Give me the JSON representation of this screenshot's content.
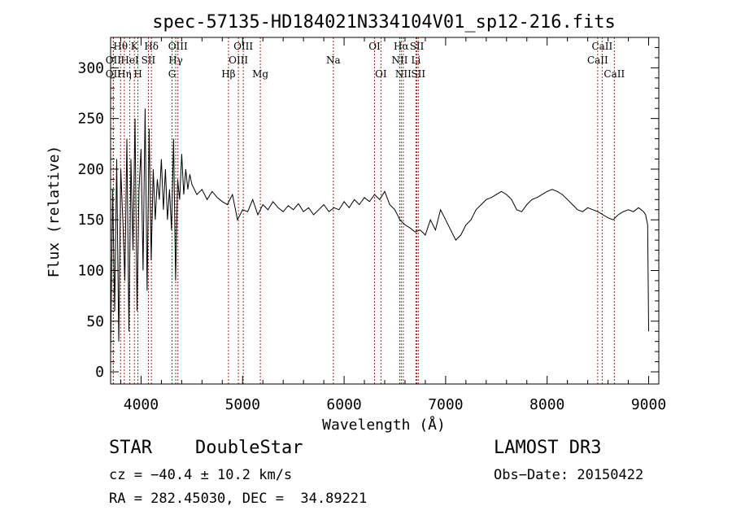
{
  "chart_data": {
    "type": "line",
    "title": "spec-57135-HD184021N334104V01_sp12-216.fits",
    "xlabel": "Wavelength (Å)",
    "ylabel": "Flux (relative)",
    "xlim": [
      3700,
      9100
    ],
    "ylim": [
      -12,
      330
    ],
    "xticks": [
      4000,
      5000,
      6000,
      7000,
      8000,
      9000
    ],
    "yticks": [
      0,
      50,
      100,
      150,
      200,
      250,
      300
    ],
    "series": [
      {
        "name": "flux",
        "x": [
          3700,
          3720,
          3740,
          3760,
          3780,
          3800,
          3820,
          3840,
          3860,
          3880,
          3900,
          3920,
          3940,
          3960,
          3980,
          4000,
          4020,
          4040,
          4060,
          4080,
          4100,
          4120,
          4140,
          4160,
          4180,
          4200,
          4220,
          4240,
          4260,
          4280,
          4300,
          4320,
          4340,
          4360,
          4380,
          4400,
          4420,
          4440,
          4460,
          4480,
          4500,
          4550,
          4600,
          4650,
          4700,
          4750,
          4800,
          4850,
          4900,
          4950,
          5000,
          5050,
          5100,
          5150,
          5200,
          5250,
          5300,
          5350,
          5400,
          5450,
          5500,
          5550,
          5600,
          5650,
          5700,
          5750,
          5800,
          5850,
          5900,
          5950,
          6000,
          6050,
          6100,
          6150,
          6200,
          6250,
          6300,
          6350,
          6400,
          6450,
          6500,
          6550,
          6600,
          6650,
          6700,
          6750,
          6800,
          6850,
          6900,
          6950,
          7000,
          7050,
          7100,
          7150,
          7200,
          7250,
          7300,
          7350,
          7400,
          7450,
          7500,
          7550,
          7600,
          7650,
          7700,
          7750,
          7800,
          7850,
          7900,
          7950,
          8000,
          8050,
          8100,
          8150,
          8200,
          8250,
          8300,
          8350,
          8400,
          8450,
          8500,
          8550,
          8600,
          8650,
          8700,
          8750,
          8800,
          8850,
          8900,
          8950,
          8970,
          8990,
          9000
        ],
        "y": [
          20,
          180,
          60,
          210,
          30,
          200,
          150,
          90,
          230,
          40,
          210,
          120,
          250,
          60,
          180,
          220,
          100,
          260,
          80,
          240,
          110,
          200,
          150,
          190,
          170,
          210,
          160,
          200,
          150,
          180,
          140,
          230,
          90,
          190,
          170,
          215,
          175,
          200,
          180,
          195,
          185,
          175,
          180,
          170,
          178,
          172,
          168,
          165,
          175,
          150,
          160,
          158,
          170,
          155,
          165,
          160,
          168,
          162,
          158,
          164,
          160,
          166,
          158,
          162,
          155,
          160,
          165,
          158,
          162,
          160,
          168,
          162,
          170,
          165,
          172,
          168,
          175,
          170,
          178,
          165,
          160,
          150,
          145,
          142,
          138,
          140,
          135,
          150,
          140,
          160,
          150,
          140,
          130,
          135,
          145,
          150,
          160,
          165,
          170,
          172,
          175,
          178,
          175,
          170,
          160,
          158,
          165,
          170,
          172,
          175,
          178,
          180,
          178,
          175,
          170,
          165,
          160,
          158,
          162,
          160,
          158,
          155,
          152,
          150,
          155,
          158,
          160,
          158,
          162,
          158,
          155,
          145,
          40
        ]
      }
    ],
    "lines": [
      {
        "name": "OII",
        "x": 3727,
        "row": 3
      },
      {
        "name": "Hθ",
        "x": 3798,
        "row": 1
      },
      {
        "name": "OII",
        "x": 3727,
        "row": 2
      },
      {
        "name": "Hη",
        "x": 3835,
        "row": 3
      },
      {
        "name": "HeI",
        "x": 3889,
        "row": 2
      },
      {
        "name": "K",
        "x": 3934,
        "row": 1
      },
      {
        "name": "H",
        "x": 3969,
        "row": 3
      },
      {
        "name": "SII",
        "x": 4072,
        "row": 2
      },
      {
        "name": "Hδ",
        "x": 4102,
        "row": 1
      },
      {
        "name": "OIII",
        "x": 4363,
        "row": 1
      },
      {
        "name": "Hγ",
        "x": 4341,
        "row": 2
      },
      {
        "name": "G",
        "x": 4305,
        "row": 3
      },
      {
        "name": "Hβ",
        "x": 4861,
        "row": 3
      },
      {
        "name": "OIII",
        "x": 5007,
        "row": 1
      },
      {
        "name": "OIII",
        "x": 4959,
        "row": 2
      },
      {
        "name": "Mg",
        "x": 5175,
        "row": 3
      },
      {
        "name": "Na",
        "x": 5894,
        "row": 2
      },
      {
        "name": "OI",
        "x": 6300,
        "row": 1
      },
      {
        "name": "OI",
        "x": 6363,
        "row": 3
      },
      {
        "name": "Hα",
        "x": 6563,
        "row": 1
      },
      {
        "name": "NII",
        "x": 6548,
        "row": 2
      },
      {
        "name": "NII",
        "x": 6583,
        "row": 3
      },
      {
        "name": "SII",
        "x": 6717,
        "row": 1
      },
      {
        "name": "Li",
        "x": 6708,
        "row": 2
      },
      {
        "name": "SII",
        "x": 6731,
        "row": 3
      },
      {
        "name": "CaII",
        "x": 8542,
        "row": 1
      },
      {
        "name": "CaII",
        "x": 8498,
        "row": 2
      },
      {
        "name": "CaII",
        "x": 8662,
        "row": 3
      }
    ]
  },
  "info": {
    "class": "STAR",
    "subclass": "DoubleStar",
    "survey": "LAMOST DR3",
    "cz": "cz = −40.4 ± 10.2 km/s",
    "obs_date": "Obs−Date: 20150422",
    "radec": "RA = 282.45030, DEC =  34.89221"
  }
}
